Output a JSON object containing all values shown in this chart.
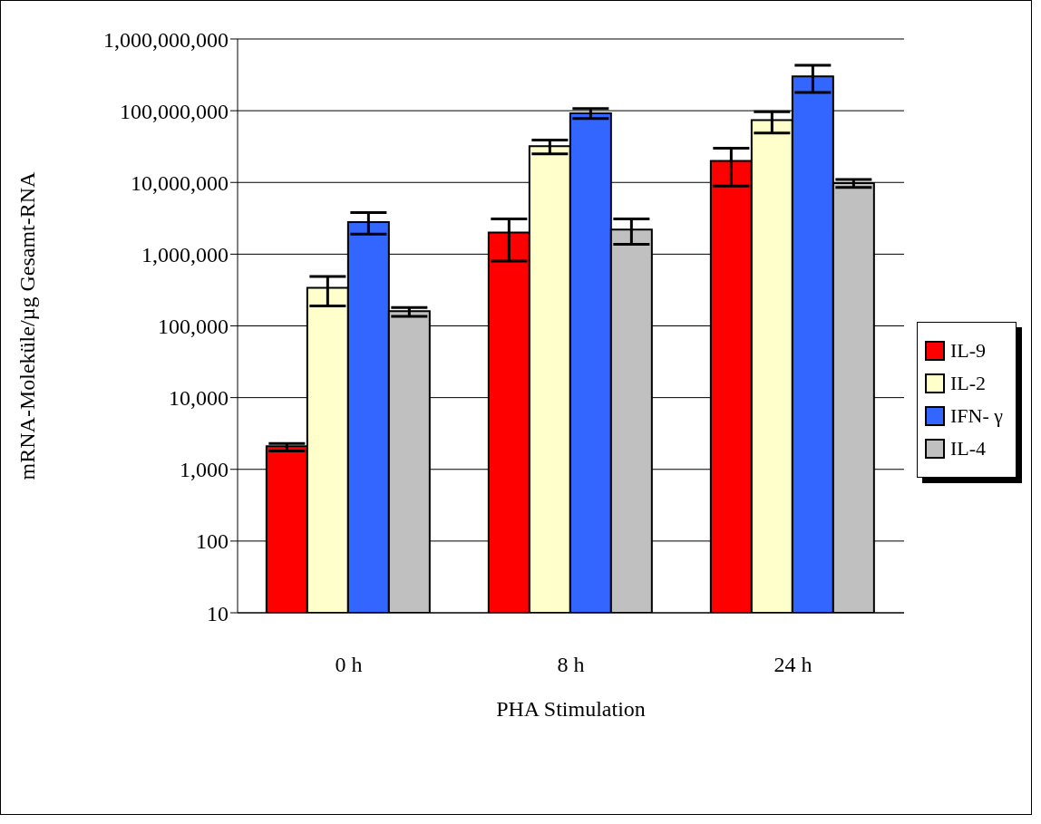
{
  "chart_data": {
    "type": "bar",
    "xlabel": "PHA Stimulation",
    "ylabel": "mRNA-Moleküle/µg Gesamt-RNA",
    "categories": [
      "0 h",
      "8 h",
      "24 h"
    ],
    "series": [
      {
        "name": "IL-9",
        "color": "#ff0000",
        "values": [
          2100,
          2000000,
          20000000
        ],
        "errors": [
          [
            1800,
            2300
          ],
          [
            800000,
            3100000
          ],
          [
            8900000,
            30000000
          ]
        ]
      },
      {
        "name": "IL-2",
        "color": "#ffffcc",
        "values": [
          340000,
          32000000,
          74000000
        ],
        "errors": [
          [
            190000,
            490000
          ],
          [
            25000000,
            39000000
          ],
          [
            49000000,
            97000000
          ]
        ]
      },
      {
        "name": "IFN- γ",
        "color": "#3366ff",
        "values": [
          2800000,
          92000000,
          300000000
        ],
        "errors": [
          [
            1900000,
            3800000
          ],
          [
            78000000,
            107000000
          ],
          [
            180000000,
            430000000
          ]
        ]
      },
      {
        "name": "IL-4",
        "color": "#c0c0c0",
        "values": [
          160000,
          2200000,
          9800000
        ],
        "errors": [
          [
            136000,
            180000
          ],
          [
            1370000,
            3100000
          ],
          [
            8500000,
            11000000
          ]
        ]
      }
    ],
    "log": true,
    "ylim": [
      10,
      1000000000
    ],
    "yticks": [
      10,
      100,
      {
        "value": 1000,
        "label": "1,000"
      },
      {
        "value": 10000,
        "label": "10,000"
      },
      {
        "value": 100000,
        "label": "100,000"
      },
      {
        "value": 1000000,
        "label": "1,000,000"
      },
      {
        "value": 10000000,
        "label": "10,000,000"
      },
      {
        "value": 100000000,
        "label": "100,000,000"
      },
      {
        "value": 1000000000,
        "label": "1,000,000,000"
      }
    ],
    "grid": "y",
    "legend": "right"
  }
}
